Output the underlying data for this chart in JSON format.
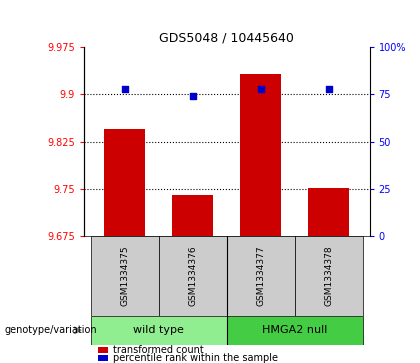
{
  "title": "GDS5048 / 10445640",
  "samples": [
    "GSM1334375",
    "GSM1334376",
    "GSM1334377",
    "GSM1334378"
  ],
  "bar_values": [
    9.845,
    9.74,
    9.932,
    9.752
  ],
  "percentile_values": [
    78,
    74,
    78,
    78
  ],
  "bar_color": "#cc0000",
  "percentile_color": "#0000cc",
  "ylim_left": [
    9.675,
    9.975
  ],
  "ylim_right": [
    0,
    100
  ],
  "yticks_left": [
    9.675,
    9.75,
    9.825,
    9.9,
    9.975
  ],
  "ytick_labels_left": [
    "9.675",
    "9.75",
    "9.825",
    "9.9",
    "9.975"
  ],
  "yticks_right": [
    0,
    25,
    50,
    75,
    100
  ],
  "ytick_labels_right": [
    "0",
    "25",
    "50",
    "75",
    "100%"
  ],
  "hlines": [
    9.9,
    9.825,
    9.75
  ],
  "groups": [
    {
      "label": "wild type",
      "indices": [
        0,
        1
      ],
      "color": "#90ee90"
    },
    {
      "label": "HMGA2 null",
      "indices": [
        2,
        3
      ],
      "color": "#44cc44"
    }
  ],
  "group_label": "genotype/variation",
  "legend_bar_label": "transformed count",
  "legend_percentile_label": "percentile rank within the sample",
  "bar_width": 0.6,
  "x_positions": [
    0,
    1,
    2,
    3
  ],
  "sample_box_color": "#cccccc",
  "figwidth": 4.2,
  "figheight": 3.63,
  "dpi": 100
}
